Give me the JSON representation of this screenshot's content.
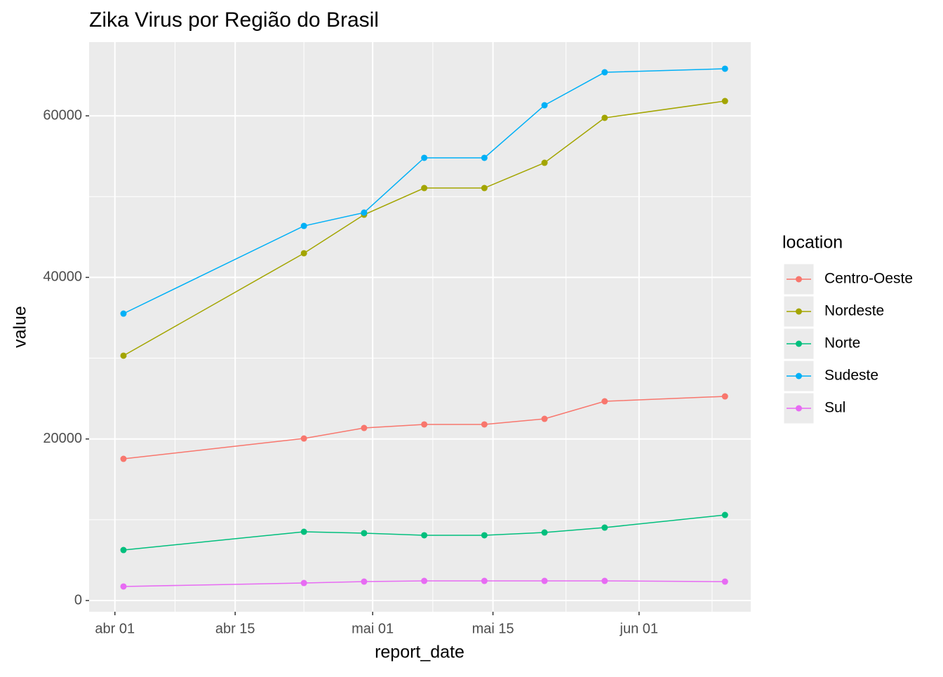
{
  "chart_data": {
    "type": "line",
    "title": "Zika Virus por Região do Brasil",
    "x_label": "report_date",
    "y_label": "value",
    "legend_title": "location",
    "x": [
      "04-02",
      "04-23",
      "04-30",
      "05-07",
      "05-14",
      "05-21",
      "05-28",
      "06-11"
    ],
    "xlim": [
      "03-29",
      "06-14"
    ],
    "xticks": [
      {
        "value": "04-01",
        "label": "abr 01"
      },
      {
        "value": "04-15",
        "label": "abr 15"
      },
      {
        "value": "05-01",
        "label": "mai 01"
      },
      {
        "value": "05-15",
        "label": "mai 15"
      },
      {
        "value": "06-01",
        "label": "jun 01"
      }
    ],
    "ylim": [
      -1390,
      69128
    ],
    "yticks": [
      0,
      20000,
      40000,
      60000
    ],
    "grid": true,
    "legend_position": "right",
    "series": [
      {
        "name": "Centro-Oeste",
        "color": "#F8766D",
        "values": [
          17540,
          20060,
          21360,
          21800,
          21800,
          22490,
          24660,
          25270
        ]
      },
      {
        "name": "Nordeste",
        "color": "#A3A500",
        "values": [
          30310,
          42990,
          47760,
          51060,
          51060,
          54190,
          59750,
          61830
        ]
      },
      {
        "name": "Norte",
        "color": "#00BF7D",
        "values": [
          6250,
          8510,
          8340,
          8080,
          8080,
          8420,
          9030,
          10590
        ]
      },
      {
        "name": "Sudeste",
        "color": "#00B0F6",
        "values": [
          35518,
          46370,
          48020,
          54800,
          54800,
          61310,
          65390,
          65830
        ]
      },
      {
        "name": "Sul",
        "color": "#E76BF3",
        "values": [
          1740,
          2170,
          2340,
          2430,
          2430,
          2430,
          2430,
          2340
        ]
      }
    ]
  }
}
